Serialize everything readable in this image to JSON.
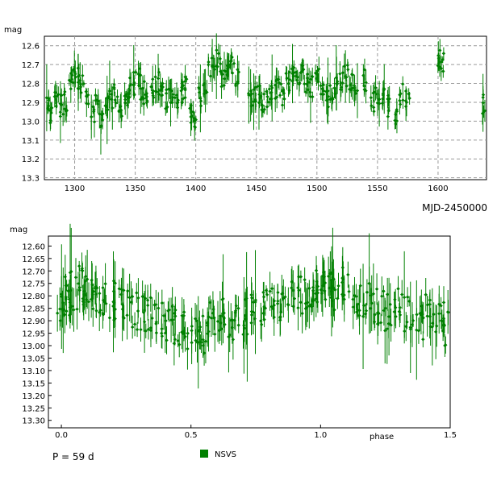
{
  "chart_data": [
    {
      "type": "scatter",
      "xlabel": "MJD-2450000",
      "ylabel": "mag",
      "xlim": [
        1275,
        1640
      ],
      "ylim": [
        13.31,
        12.55
      ],
      "y_inverted": true,
      "grid": true,
      "x_ticks": [
        "1300",
        "1350",
        "1400",
        "1450",
        "1500",
        "1550",
        "1600"
      ],
      "y_ticks": [
        "12.6",
        "12.7",
        "12.8",
        "12.9",
        "13.0",
        "13.1",
        "13.2",
        "13.3"
      ],
      "series": [
        {
          "color": "#008000",
          "marker": "diamond",
          "error_bars": true,
          "points_summary": "time series around mag 12.7–13.0 with scattered faint points to 13.3",
          "x": [
            1278,
            1281,
            1285,
            1289,
            1293,
            1297,
            1300,
            1303,
            1306,
            1310,
            1315,
            1318,
            1322,
            1327,
            1330,
            1334,
            1338,
            1342,
            1346,
            1350,
            1353,
            1356,
            1360,
            1364,
            1368,
            1372,
            1376,
            1380,
            1384,
            1388,
            1392,
            1396,
            1399,
            1403,
            1408,
            1412,
            1416,
            1419,
            1422,
            1426,
            1430,
            1434,
            1445,
            1448,
            1452,
            1456,
            1460,
            1464,
            1468,
            1472,
            1476,
            1480,
            1484,
            1488,
            1492,
            1496,
            1500,
            1504,
            1508,
            1512,
            1516,
            1520,
            1524,
            1528,
            1532,
            1540,
            1546,
            1550,
            1555,
            1560,
            1565,
            1570,
            1575,
            1601,
            1603,
            1637
          ],
          "y": [
            12.93,
            12.95,
            12.88,
            12.92,
            12.9,
            12.8,
            12.75,
            12.77,
            12.8,
            12.9,
            12.95,
            12.88,
            12.98,
            12.92,
            12.9,
            12.85,
            12.95,
            12.88,
            12.82,
            12.8,
            12.78,
            12.85,
            12.9,
            12.82,
            12.8,
            12.86,
            12.88,
            12.85,
            12.9,
            12.85,
            12.82,
            12.95,
            12.98,
            12.88,
            12.8,
            12.72,
            12.68,
            12.7,
            12.78,
            12.75,
            12.72,
            12.76,
            12.9,
            12.88,
            12.85,
            12.9,
            12.88,
            12.85,
            12.82,
            12.86,
            12.8,
            12.76,
            12.78,
            12.75,
            12.8,
            12.82,
            12.78,
            12.86,
            12.88,
            12.85,
            12.82,
            12.8,
            12.76,
            12.78,
            12.82,
            12.78,
            12.9,
            12.86,
            12.88,
            12.92,
            12.96,
            12.86,
            12.9,
            12.68,
            12.7,
            12.92
          ]
        }
      ]
    },
    {
      "type": "scatter",
      "xlabel": "phase",
      "ylabel": "mag",
      "xlim": [
        -0.05,
        1.5
      ],
      "ylim": [
        13.33,
        12.56
      ],
      "y_inverted": true,
      "grid": false,
      "x_ticks": [
        "0.0",
        "0.5",
        "1.0",
        "1.5"
      ],
      "y_ticks": [
        "12.60",
        "12.65",
        "12.70",
        "12.75",
        "12.80",
        "12.85",
        "12.90",
        "12.95",
        "13.00",
        "13.05",
        "13.10",
        "13.15",
        "13.20",
        "13.25",
        "13.30"
      ],
      "period_label": "P = 59 d",
      "legend": {
        "label": "NSVS",
        "color": "#008000",
        "position": "bottom"
      },
      "series": [
        {
          "name": "NSVS",
          "color": "#008000",
          "marker": "diamond",
          "error_bars": true,
          "points_summary": "folded light curve, maximum near phase 0.1 and 1.1, minimum near phase 0.55 and 1.55",
          "x": [
            0.0,
            0.02,
            0.05,
            0.08,
            0.1,
            0.13,
            0.16,
            0.2,
            0.24,
            0.28,
            0.32,
            0.36,
            0.4,
            0.44,
            0.48,
            0.52,
            0.55,
            0.58,
            0.62,
            0.66,
            0.7,
            0.74,
            0.78,
            0.82,
            0.86,
            0.9,
            0.94,
            0.98,
            1.0,
            1.03,
            1.06,
            1.1,
            1.14,
            1.18,
            1.22,
            1.26,
            1.3,
            1.34,
            1.38,
            1.42,
            1.46,
            1.48
          ],
          "y": [
            12.85,
            12.8,
            12.78,
            12.76,
            12.75,
            12.78,
            12.8,
            12.82,
            12.84,
            12.86,
            12.87,
            12.88,
            12.9,
            12.92,
            12.94,
            12.93,
            12.95,
            12.9,
            12.88,
            12.9,
            12.88,
            12.86,
            12.85,
            12.84,
            12.82,
            12.8,
            12.8,
            12.78,
            12.75,
            12.77,
            12.78,
            12.76,
            12.8,
            12.82,
            12.84,
            12.86,
            12.85,
            12.88,
            12.9,
            12.86,
            12.9,
            12.92
          ]
        }
      ]
    }
  ]
}
